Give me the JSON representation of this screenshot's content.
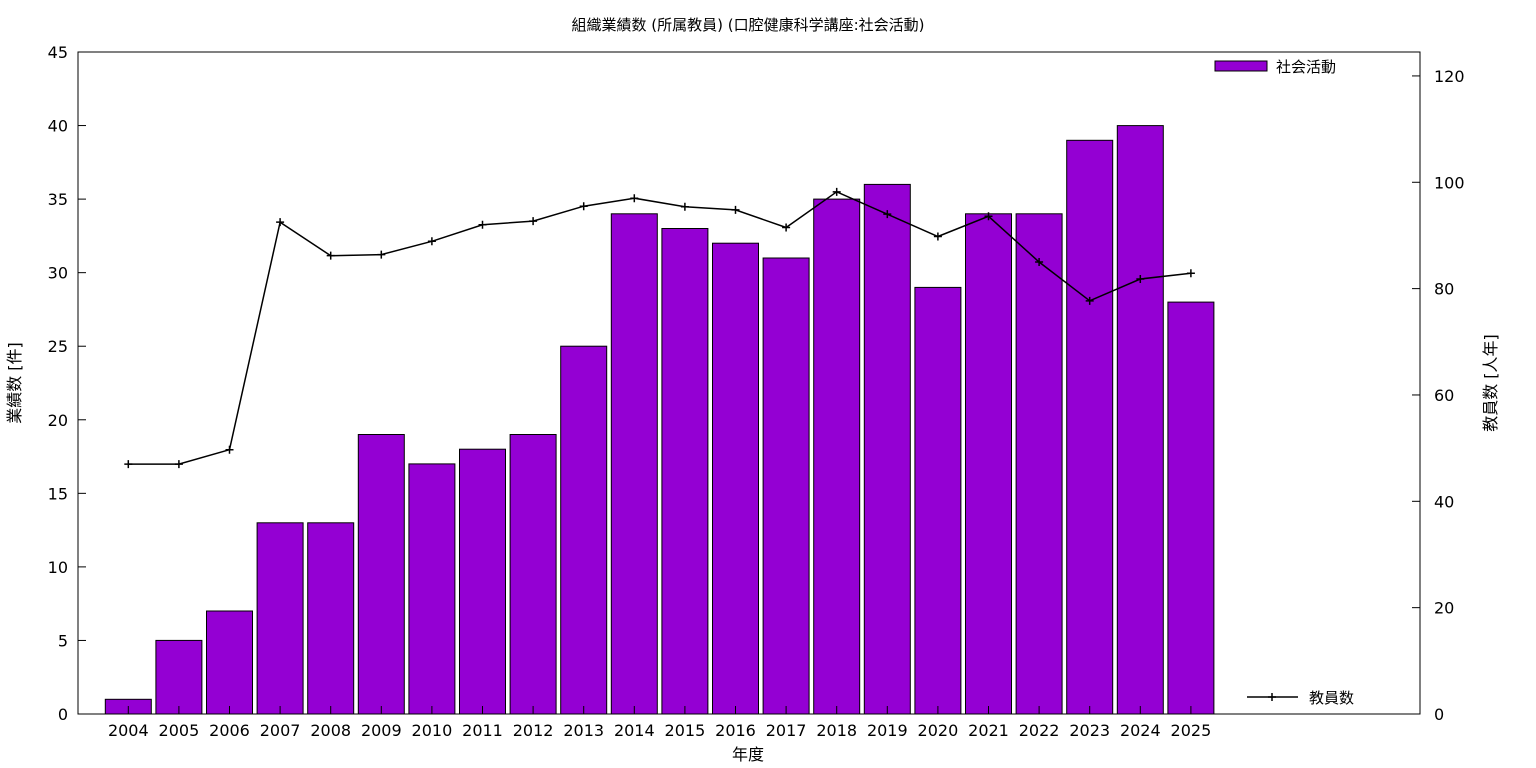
{
  "chart_data": {
    "type": "bar",
    "title": "組織業績数 (所属教員) (口腔健康科学講座:社会活動)",
    "xlabel": "年度",
    "ylabel": "業績数 [件]",
    "y2label": "教員数 [人年]",
    "categories": [
      "2004",
      "2005",
      "2006",
      "2007",
      "2008",
      "2009",
      "2010",
      "2011",
      "2012",
      "2013",
      "2014",
      "2015",
      "2016",
      "2017",
      "2018",
      "2019",
      "2020",
      "2021",
      "2022",
      "2023",
      "2024",
      "2025"
    ],
    "series": [
      {
        "name": "社会活動",
        "type": "bar",
        "axis": "left",
        "color": "#9400d3",
        "values": [
          1,
          5,
          7,
          13,
          13,
          19,
          17,
          18,
          19,
          25,
          34,
          33,
          32,
          31,
          35,
          36,
          29,
          34,
          34,
          39,
          40,
          28
        ]
      },
      {
        "name": "教員数",
        "type": "line",
        "axis": "right",
        "color": "#000000",
        "values": [
          47,
          47,
          49.7,
          92.5,
          86.2,
          86.4,
          88.9,
          92,
          92.7,
          95.5,
          97,
          95.4,
          94.8,
          91.5,
          98.2,
          94,
          89.8,
          93.6,
          85,
          77.7,
          81.8,
          82.9
        ]
      }
    ],
    "ylim": [
      0,
      45
    ],
    "yticks": [
      0,
      5,
      10,
      15,
      20,
      25,
      30,
      35,
      40,
      45
    ],
    "y2lim": [
      0,
      124.5
    ],
    "y2ticks": [
      0,
      20,
      40,
      60,
      80,
      100,
      120
    ],
    "grid": false,
    "legend": [
      {
        "label": "社会活動",
        "placement": "top-right",
        "marker": "bar-swatch"
      },
      {
        "label": "教員数",
        "placement": "bottom-right",
        "marker": "line-with-plus"
      }
    ]
  }
}
